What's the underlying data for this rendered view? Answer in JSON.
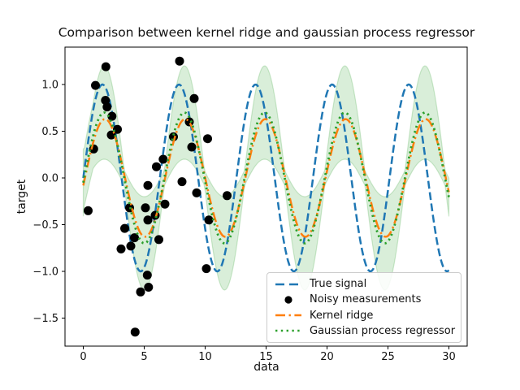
{
  "chart_data": {
    "type": "line",
    "title": "Comparison between kernel ridge and gaussian process regressor",
    "xlabel": "data",
    "ylabel": "target",
    "xlim": [
      -1.5,
      31.5
    ],
    "ylim": [
      -1.8,
      1.4
    ],
    "grid": false,
    "legend_position": "lower right",
    "xticks": {
      "values": [
        0,
        5,
        10,
        15,
        20,
        25,
        30
      ],
      "labels": [
        "0",
        "5",
        "10",
        "15",
        "20",
        "25",
        "30"
      ]
    },
    "yticks": {
      "values": [
        1.0,
        0.5,
        0.0,
        -0.5,
        -1.0,
        -1.5
      ],
      "labels": [
        "1.0",
        "0.5",
        "0.0",
        "−0.5",
        "−1.0",
        "−1.5"
      ]
    },
    "series": [
      {
        "name": "True signal",
        "kind": "sine",
        "amplitude": 1.0,
        "period": 6.2832,
        "peak_x": 1.5708,
        "x_range": [
          0,
          30
        ],
        "style": "dashed",
        "color": "#1f77b4",
        "linewidth": 2.5
      },
      {
        "name": "Kernel ridge",
        "kind": "sine",
        "amplitude": 0.63,
        "period": 6.58,
        "peak_x": 1.78,
        "x_range": [
          0,
          30
        ],
        "style": "dashdot",
        "color": "#ff7f0e",
        "linewidth": 2.5
      },
      {
        "name": "Gaussian process regressor",
        "kind": "sine",
        "amplitude": 0.7,
        "period": 6.58,
        "peak_x": 1.72,
        "x_range": [
          0,
          30
        ],
        "style": "dotted",
        "color": "#2ca02c",
        "linewidth": 2.8
      }
    ],
    "uncertainty_band": {
      "follows": "Gaussian process regressor",
      "color": "#2ca02c",
      "opacity": 0.18,
      "half_width_min": 0.08,
      "half_width_max": 0.5,
      "edge_boost": 0.25,
      "edge_boost_until_x": 0.8
    },
    "scatter": {
      "name": "Noisy measurements",
      "color": "#000000",
      "marker_radius": 5.5,
      "points": [
        [
          0.4,
          -0.35
        ],
        [
          0.85,
          0.31
        ],
        [
          1.0,
          0.99
        ],
        [
          1.85,
          1.19
        ],
        [
          1.82,
          0.83
        ],
        [
          1.95,
          0.76
        ],
        [
          2.35,
          0.66
        ],
        [
          2.3,
          0.46
        ],
        [
          2.8,
          0.52
        ],
        [
          3.1,
          -0.76
        ],
        [
          3.4,
          -0.54
        ],
        [
          3.8,
          -0.32
        ],
        [
          3.9,
          -0.73
        ],
        [
          4.2,
          -0.64
        ],
        [
          4.25,
          -1.65
        ],
        [
          4.7,
          -1.22
        ],
        [
          5.1,
          -0.32
        ],
        [
          5.25,
          -1.04
        ],
        [
          5.3,
          -0.45
        ],
        [
          5.35,
          -1.17
        ],
        [
          5.3,
          -0.08
        ],
        [
          5.9,
          -0.4
        ],
        [
          6.0,
          0.12
        ],
        [
          6.2,
          -0.66
        ],
        [
          6.55,
          0.2
        ],
        [
          6.7,
          -0.28
        ],
        [
          7.4,
          0.44
        ],
        [
          7.9,
          1.25
        ],
        [
          8.1,
          -0.04
        ],
        [
          8.7,
          0.6
        ],
        [
          8.9,
          0.33
        ],
        [
          9.1,
          0.85
        ],
        [
          9.3,
          -0.16
        ],
        [
          10.1,
          -0.97
        ],
        [
          10.2,
          0.42
        ],
        [
          10.3,
          -0.45
        ],
        [
          11.8,
          -0.19
        ]
      ]
    },
    "legend": {
      "entries": [
        {
          "label": "True signal",
          "swatch": "dashed-line",
          "color": "#1f77b4"
        },
        {
          "label": "Noisy measurements",
          "swatch": "dot-marker",
          "color": "#000000"
        },
        {
          "label": "Kernel ridge",
          "swatch": "dashdot-line",
          "color": "#ff7f0e"
        },
        {
          "label": "Gaussian process regressor",
          "swatch": "dotted-line",
          "color": "#2ca02c"
        }
      ]
    }
  }
}
